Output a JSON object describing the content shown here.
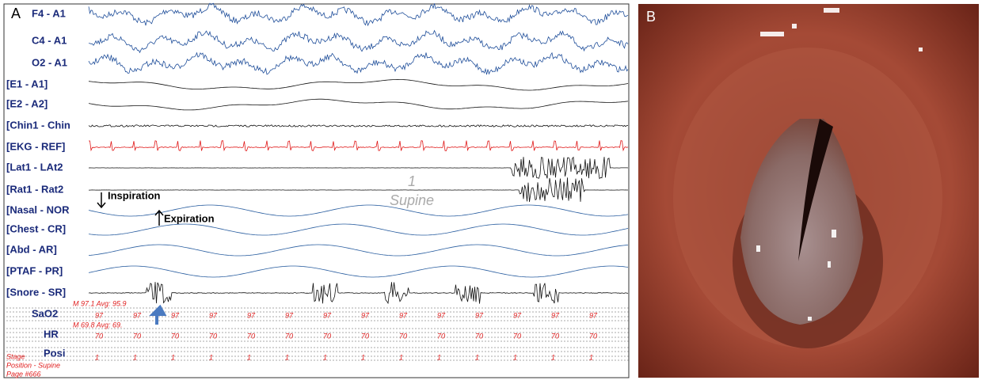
{
  "panel_a": {
    "label": "A",
    "channels": [
      "F4 - A1",
      "C4 - A1",
      "O2 - A1",
      "[E1 - A1]",
      "[E2 - A2]",
      "[Chin1 - Chin",
      "[EKG - REF]",
      "[Lat1 - LAt2",
      "[Rat1 - Rat2",
      "[Nasal - NOR",
      "[Chest - CR]",
      "[Abd - AR]",
      "[PTAF - PR]",
      "[Snore - SR]",
      "SaO2",
      "HR",
      "Posi"
    ],
    "annotations": {
      "inspiration": "Inspiration",
      "expiration": "Expiration",
      "epoch": "1",
      "position": "Supine"
    },
    "sao2_summary": "M 97.1 Avg: 95.9",
    "hr_summary": "M 69.8 Avg: 69.",
    "sao2_readings": [
      "97",
      "97",
      "97",
      "97",
      "97",
      "97",
      "97",
      "97",
      "97",
      "97",
      "97",
      "97",
      "97",
      "97"
    ],
    "hr_readings": [
      "70",
      "70",
      "70",
      "70",
      "70",
      "70",
      "70",
      "70",
      "70",
      "70",
      "70",
      "70",
      "70",
      "70"
    ],
    "position_readings": [
      "1",
      "1",
      "1",
      "1",
      "1",
      "1",
      "1",
      "1",
      "1",
      "1",
      "1",
      "1",
      "1",
      "1"
    ],
    "footer": [
      "Stage",
      "Position - Supine",
      "Page #666"
    ]
  },
  "panel_b": {
    "label": "B"
  }
}
